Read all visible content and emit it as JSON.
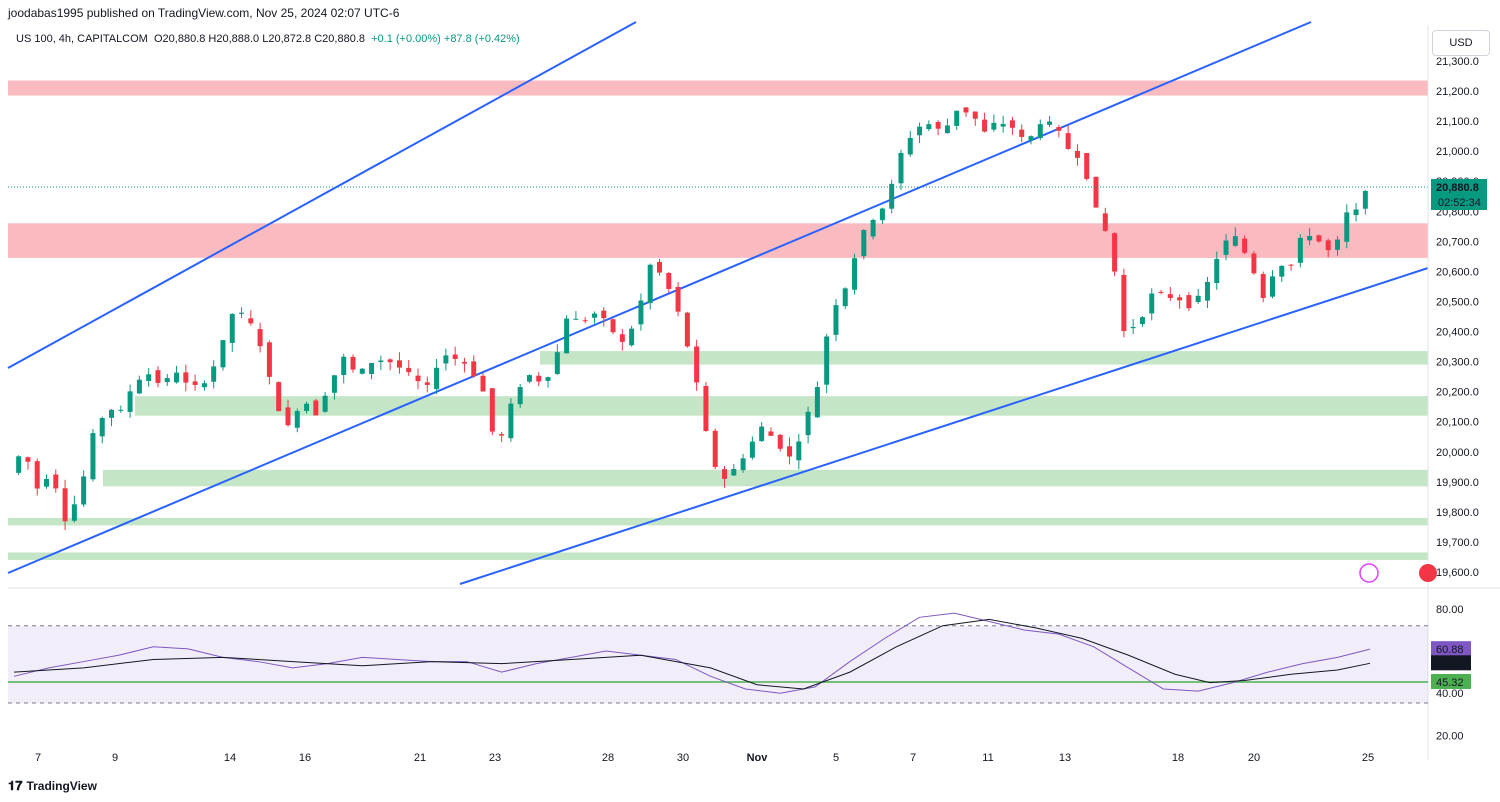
{
  "header": {
    "published": "joodabas1995 published on TradingView.com, Nov 25, 2024 02:07 UTC-6",
    "symbol": "US 100, 4h, CAPITALCOM",
    "ohlc": "O20,880.8 H20,888.0 L20,872.8 C20,880.8",
    "change": "+0.1 (+0.00%) +87.8 (+0.42%)"
  },
  "currency_button": "USD",
  "brand": "TradingView",
  "colors": {
    "up": "#089981",
    "down": "#f23645",
    "trendline": "#2962ff",
    "resistance": "#f7a9b0",
    "support": "#b7dfb9",
    "rsi_band": "#7e57c2"
  },
  "chart_data": [
    {
      "type": "candlestick",
      "title": "US 100, 4h, CAPITALCOM",
      "ylim": [
        19550,
        21420
      ],
      "y_ticks": [
        "21,300.0",
        "21,200.0",
        "21,100.0",
        "21,000.0",
        "20,900.0",
        "20,800.0",
        "20,700.0",
        "20,600.0",
        "20,500.0",
        "20,400.0",
        "20,300.0",
        "20,200.0",
        "20,100.0",
        "20,000.0",
        "19,900.0",
        "19,800.0",
        "19,700.0",
        "19,600.0"
      ],
      "y_tick_values": [
        21300,
        21200,
        21100,
        21000,
        20900,
        20800,
        20700,
        20600,
        20500,
        20400,
        20300,
        20200,
        20100,
        20000,
        19900,
        19800,
        19700,
        19600
      ],
      "x_ticks": [
        "7",
        "9",
        "14",
        "16",
        "21",
        "23",
        "28",
        "30",
        "Nov",
        "5",
        "7",
        "11",
        "13",
        "18",
        "20",
        "25"
      ],
      "last_price": "20,880.8",
      "last_value": 20880.8,
      "countdown": "02:52:34",
      "close_path": [
        [
          0,
          19930
        ],
        [
          6,
          20010
        ],
        [
          12,
          19880
        ],
        [
          18,
          19940
        ],
        [
          24,
          19780
        ],
        [
          30,
          19850
        ],
        [
          36,
          20050
        ],
        [
          42,
          20150
        ],
        [
          48,
          20130
        ],
        [
          54,
          20240
        ],
        [
          60,
          20260
        ],
        [
          66,
          20220
        ],
        [
          72,
          20270
        ],
        [
          78,
          20200
        ],
        [
          84,
          20240
        ],
        [
          90,
          20310
        ],
        [
          96,
          20460
        ],
        [
          102,
          20450
        ],
        [
          108,
          20360
        ],
        [
          114,
          20180
        ],
        [
          120,
          20080
        ],
        [
          126,
          20180
        ],
        [
          132,
          20130
        ],
        [
          138,
          20230
        ],
        [
          144,
          20310
        ],
        [
          150,
          20250
        ],
        [
          156,
          20300
        ],
        [
          162,
          20310
        ],
        [
          168,
          20280
        ],
        [
          174,
          20240
        ],
        [
          180,
          20210
        ],
        [
          186,
          20330
        ],
        [
          192,
          20310
        ],
        [
          198,
          20290
        ],
        [
          204,
          20200
        ],
        [
          210,
          20000
        ],
        [
          216,
          20150
        ],
        [
          222,
          20260
        ],
        [
          228,
          20240
        ],
        [
          234,
          20270
        ],
        [
          240,
          20450
        ],
        [
          246,
          20430
        ],
        [
          252,
          20460
        ],
        [
          258,
          20420
        ],
        [
          264,
          20360
        ],
        [
          270,
          20440
        ],
        [
          276,
          20620
        ],
        [
          282,
          20580
        ],
        [
          288,
          20460
        ],
        [
          294,
          20300
        ],
        [
          300,
          20060
        ],
        [
          306,
          19900
        ],
        [
          312,
          19940
        ],
        [
          318,
          20010
        ],
        [
          324,
          20080
        ],
        [
          330,
          20040
        ],
        [
          336,
          19980
        ],
        [
          342,
          20080
        ],
        [
          348,
          20220
        ],
        [
          354,
          20470
        ],
        [
          360,
          20550
        ],
        [
          366,
          20700
        ],
        [
          372,
          20780
        ],
        [
          378,
          20830
        ],
        [
          384,
          20990
        ],
        [
          390,
          21080
        ],
        [
          396,
          21090
        ],
        [
          402,
          21060
        ],
        [
          408,
          21140
        ],
        [
          414,
          21130
        ],
        [
          420,
          21060
        ],
        [
          426,
          21100
        ],
        [
          432,
          21080
        ],
        [
          438,
          21020
        ],
        [
          444,
          21100
        ],
        [
          450,
          21080
        ],
        [
          456,
          21010
        ],
        [
          462,
          20980
        ],
        [
          468,
          20800
        ],
        [
          474,
          20700
        ],
        [
          480,
          20400
        ],
        [
          486,
          20430
        ],
        [
          492,
          20520
        ],
        [
          498,
          20520
        ],
        [
          504,
          20510
        ],
        [
          510,
          20480
        ],
        [
          516,
          20560
        ],
        [
          522,
          20690
        ],
        [
          528,
          20710
        ],
        [
          534,
          20640
        ],
        [
          540,
          20520
        ],
        [
          546,
          20630
        ],
        [
          552,
          20620
        ],
        [
          558,
          20740
        ],
        [
          564,
          20700
        ],
        [
          570,
          20650
        ],
        [
          576,
          20790
        ],
        [
          582,
          20800
        ],
        [
          584,
          20880
        ]
      ]
    },
    {
      "type": "line",
      "title": "RSI",
      "ylim": [
        14,
        88
      ],
      "y_ticks": [
        "80.00",
        "40.00",
        "20.00"
      ],
      "y_tick_values": [
        80,
        40,
        20
      ],
      "band": [
        45.32,
        72
      ],
      "level_line": 45.32,
      "series": [
        {
          "values": [
            [
              0,
              48
            ],
            [
              15,
              52
            ],
            [
              30,
              55
            ],
            [
              45,
              58
            ],
            [
              60,
              62
            ],
            [
              75,
              61
            ],
            [
              90,
              57
            ],
            [
              105,
              55
            ],
            [
              120,
              52
            ],
            [
              135,
              54
            ],
            [
              150,
              57
            ],
            [
              165,
              56
            ],
            [
              180,
              55
            ],
            [
              195,
              55
            ],
            [
              210,
              50
            ],
            [
              225,
              54
            ],
            [
              240,
              57
            ],
            [
              255,
              60
            ],
            [
              270,
              58
            ],
            [
              285,
              56
            ],
            [
              300,
              48
            ],
            [
              315,
              42
            ],
            [
              330,
              40
            ],
            [
              345,
              43
            ],
            [
              360,
              55
            ],
            [
              375,
              66
            ],
            [
              390,
              76
            ],
            [
              405,
              78
            ],
            [
              420,
              74
            ],
            [
              435,
              70
            ],
            [
              450,
              68
            ],
            [
              465,
              62
            ],
            [
              480,
              52
            ],
            [
              495,
              42
            ],
            [
              510,
              41
            ],
            [
              525,
              45
            ],
            [
              540,
              50
            ],
            [
              555,
              54
            ],
            [
              570,
              57
            ],
            [
              584,
              60.88
            ]
          ]
        },
        {
          "values": [
            [
              0,
              50
            ],
            [
              30,
              52
            ],
            [
              60,
              56
            ],
            [
              90,
              57
            ],
            [
              120,
              55
            ],
            [
              150,
              53
            ],
            [
              180,
              55
            ],
            [
              210,
              54
            ],
            [
              240,
              56
            ],
            [
              270,
              58
            ],
            [
              300,
              52
            ],
            [
              320,
              44
            ],
            [
              340,
              42
            ],
            [
              360,
              50
            ],
            [
              380,
              62
            ],
            [
              400,
              72
            ],
            [
              420,
              75
            ],
            [
              440,
              71
            ],
            [
              460,
              66
            ],
            [
              480,
              58
            ],
            [
              500,
              49
            ],
            [
              515,
              45
            ],
            [
              530,
              46
            ],
            [
              550,
              49
            ],
            [
              570,
              51
            ],
            [
              584,
              54.17
            ]
          ]
        }
      ],
      "last_values": [
        "60.88",
        "54.17",
        "45.32"
      ]
    }
  ],
  "zones": {
    "resistance": [
      [
        21185,
        21235
      ],
      [
        20645,
        20760
      ]
    ],
    "support": [
      [
        20290,
        20335
      ],
      [
        20120,
        20185
      ],
      [
        19885,
        19940
      ],
      [
        19755,
        19780
      ],
      [
        19640,
        19665
      ]
    ]
  }
}
